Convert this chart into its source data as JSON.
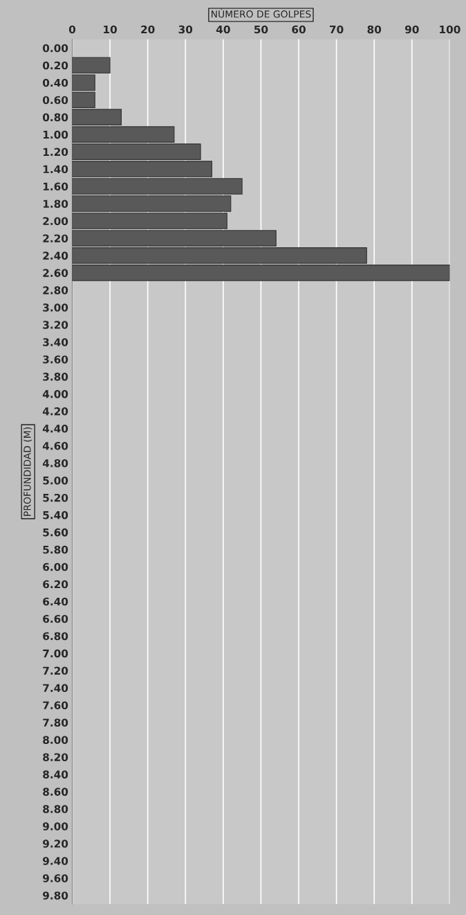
{
  "chart_data": {
    "type": "bar",
    "orientation": "horizontal",
    "xlabel": "NÚMERO DE GOLPES",
    "ylabel": "PROFUNDIDAD (M)",
    "categories": [
      "0.00",
      "0.20",
      "0.40",
      "0.60",
      "0.80",
      "1.00",
      "1.20",
      "1.40",
      "1.60",
      "1.80",
      "2.00",
      "2.20",
      "2.40",
      "2.60",
      "2.80",
      "3.00",
      "3.20",
      "3.40",
      "3.60",
      "3.80",
      "4.00",
      "4.20",
      "4.40",
      "4.60",
      "4.80",
      "5.00",
      "5.20",
      "5.40",
      "5.60",
      "5.80",
      "6.00",
      "6.20",
      "6.40",
      "6.60",
      "6.80",
      "7.00",
      "7.20",
      "7.40",
      "7.60",
      "7.80",
      "8.00",
      "8.20",
      "8.40",
      "8.60",
      "8.80",
      "9.00",
      "9.20",
      "9.40",
      "9.60",
      "9.80"
    ],
    "values": [
      null,
      10,
      6,
      6,
      13,
      27,
      34,
      37,
      45,
      42,
      41,
      54,
      78,
      100,
      null,
      null,
      null,
      null,
      null,
      null,
      null,
      null,
      null,
      null,
      null,
      null,
      null,
      null,
      null,
      null,
      null,
      null,
      null,
      null,
      null,
      null,
      null,
      null,
      null,
      null,
      null,
      null,
      null,
      null,
      null,
      null,
      null,
      null,
      null,
      null
    ],
    "color": "#595959",
    "xlim": [
      0,
      100
    ],
    "xticks": [
      0,
      10,
      20,
      30,
      40,
      50,
      60,
      70,
      80,
      90,
      100
    ],
    "grid": "x"
  }
}
